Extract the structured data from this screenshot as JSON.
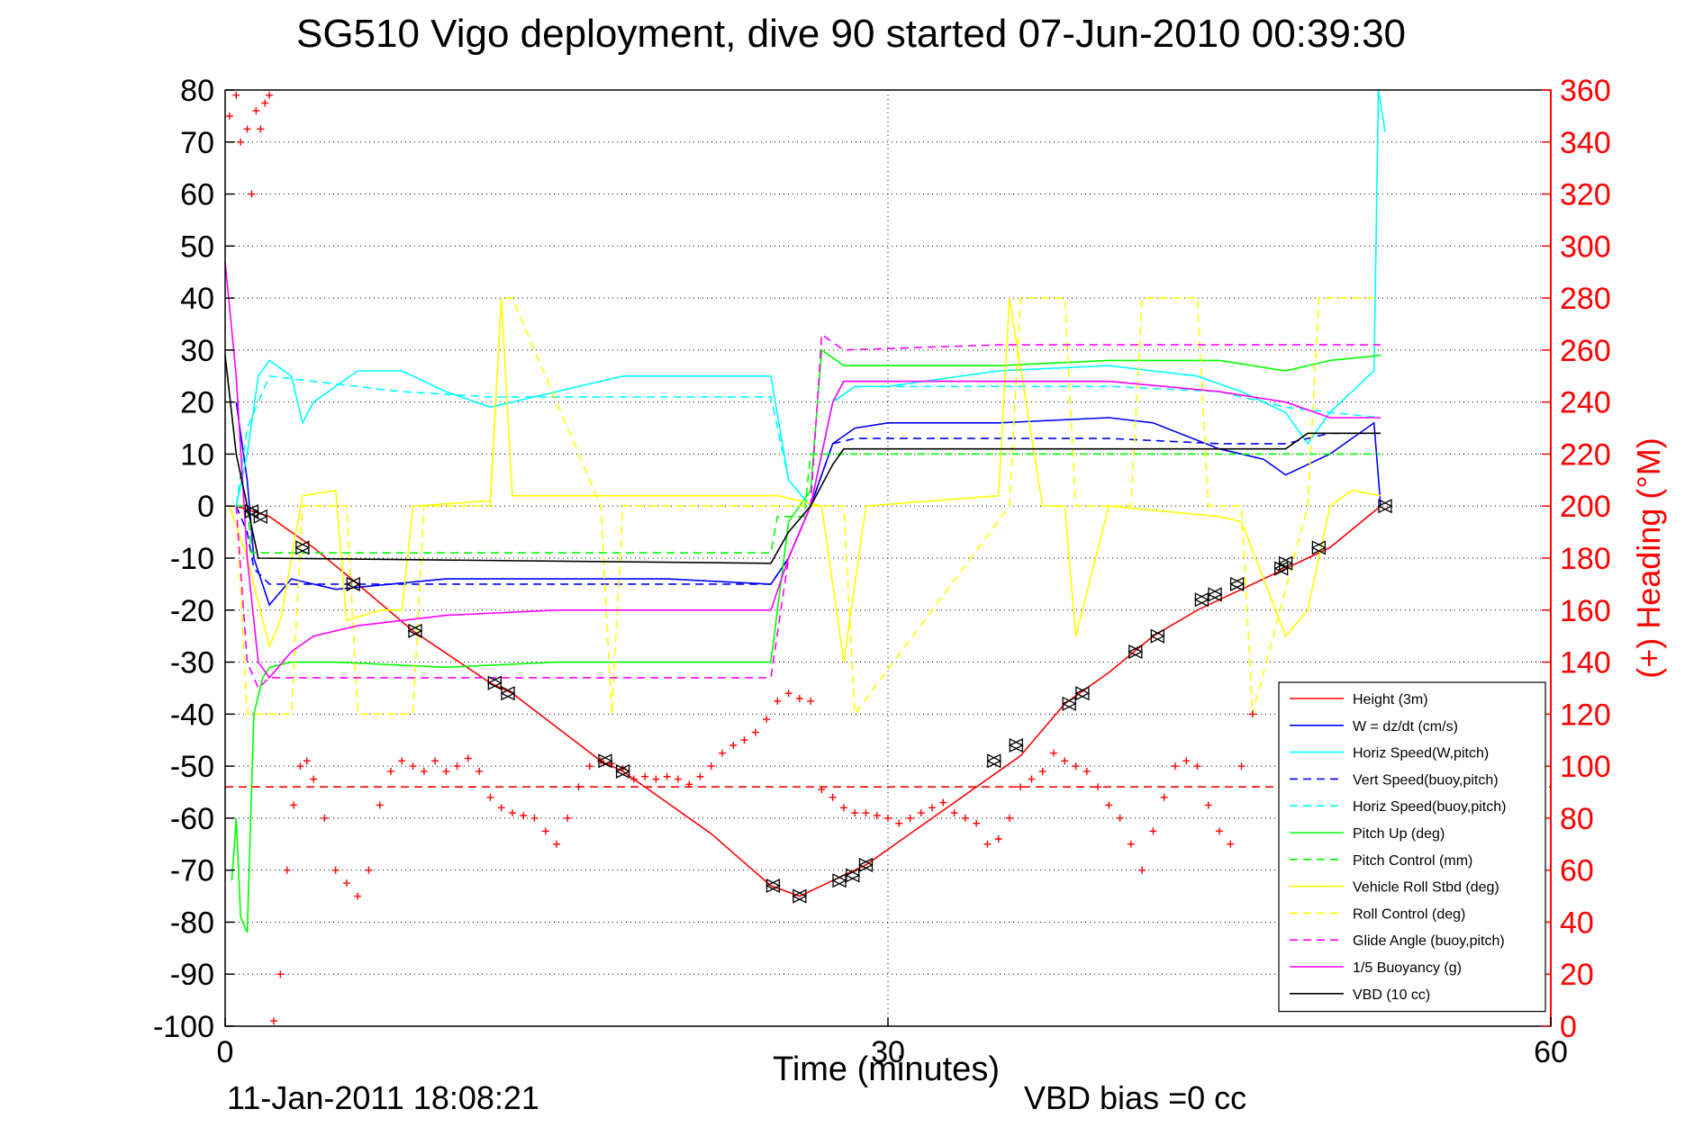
{
  "chart_data": {
    "type": "line",
    "title": "SG510 Vigo deployment, dive 90 started 07-Jun-2010 00:39:30",
    "xlabel": "Time (minutes)",
    "ylabel": "",
    "y2label": "(+) Heading (°M)",
    "footer_left": "11-Jan-2011 18:08:21",
    "footer_right": "VBD bias =0 cc",
    "xlim": [
      0,
      60
    ],
    "ylim": [
      -100,
      80
    ],
    "y2lim": [
      0,
      360
    ],
    "x_ticks": [
      "0",
      "30",
      "60"
    ],
    "x_tick_values": [
      0,
      30,
      60
    ],
    "y_ticks": [
      "80",
      "70",
      "60",
      "50",
      "40",
      "30",
      "20",
      "10",
      "0",
      "-10",
      "-20",
      "-30",
      "-40",
      "-50",
      "-60",
      "-70",
      "-80",
      "-90",
      "-100"
    ],
    "y_tick_values": [
      80,
      70,
      60,
      50,
      40,
      30,
      20,
      10,
      0,
      -10,
      -20,
      -30,
      -40,
      -50,
      -60,
      -70,
      -80,
      -90,
      -100
    ],
    "y2_ticks": [
      "360",
      "340",
      "320",
      "300",
      "280",
      "260",
      "240",
      "220",
      "200",
      "180",
      "160",
      "140",
      "120",
      "100",
      "80",
      "60",
      "40",
      "20",
      "0"
    ],
    "y2_tick_values": [
      360,
      340,
      320,
      300,
      280,
      260,
      240,
      220,
      200,
      180,
      160,
      140,
      120,
      100,
      80,
      60,
      40,
      20,
      0
    ],
    "grid": "dotted",
    "legend_position": "bottom-right",
    "colors": {
      "primary_axis": "#000000",
      "secondary_axis": "#ff0000"
    },
    "series": [
      {
        "name": "Height (3m)",
        "color": "#ff0000",
        "dash": "solid",
        "x": [
          0.5,
          2,
          4,
          6,
          8.5,
          12,
          13,
          17,
          18,
          20,
          22,
          24.7,
          26,
          27.5,
          28,
          29,
          33,
          36,
          38,
          40,
          42,
          44,
          46,
          47,
          48,
          50,
          52.3
        ],
        "y": [
          0,
          -2,
          -8,
          -15,
          -24,
          -34,
          -36,
          -49,
          -51,
          -57,
          -63,
          -73,
          -75,
          -72,
          -71,
          -69,
          -57,
          -48,
          -38,
          -32,
          -25,
          -20,
          -16,
          -14,
          -12,
          -8,
          0
        ]
      },
      {
        "name": "W = dz/dt (cm/s)",
        "color": "#0000ff",
        "dash": "solid",
        "x": [
          0.5,
          1,
          1.3,
          2,
          3,
          5,
          10,
          15,
          20,
          24.7,
          25.5,
          26.5,
          27.5,
          28.5,
          30,
          35,
          40,
          42,
          45,
          47,
          48,
          50,
          52,
          52.3
        ],
        "y": [
          20,
          5,
          -10,
          -19,
          -14,
          -16,
          -14,
          -14,
          -14,
          -15,
          -10,
          0,
          12,
          15,
          16,
          16,
          17,
          16,
          11,
          9,
          6,
          10,
          16,
          0
        ]
      },
      {
        "name": "Horiz Speed(W,pitch)",
        "color": "#00ffff",
        "dash": "solid",
        "x": [
          0.5,
          1,
          1.5,
          2,
          3,
          3.5,
          4,
          6,
          8,
          10,
          12,
          15,
          18,
          20,
          22,
          24.7,
          25.5,
          26.5,
          27.5,
          28.5,
          30,
          35,
          40,
          44,
          46,
          48,
          49,
          50,
          51,
          52,
          52.2,
          52.5
        ],
        "y": [
          0,
          10,
          25,
          28,
          25,
          16,
          20,
          26,
          26,
          22,
          19,
          22,
          25,
          25,
          25,
          25,
          5,
          0,
          20,
          23,
          23,
          26,
          27,
          25,
          22,
          18,
          12,
          18,
          22,
          26,
          80,
          72
        ]
      },
      {
        "name": "Vert Speed(buoy,pitch)",
        "color": "#0000ff",
        "dash": "dashed",
        "x": [
          0.5,
          1,
          1.3,
          2,
          3,
          5,
          24.7,
          25.5,
          26.5,
          27.5,
          28.5,
          35,
          40,
          45,
          48,
          50,
          52.3
        ],
        "y": [
          0,
          -5,
          -12,
          -15,
          -15,
          -15,
          -15,
          -10,
          0,
          12,
          13,
          13,
          13,
          12,
          12,
          14,
          14
        ]
      },
      {
        "name": "Horiz Speed(buoy,pitch)",
        "color": "#00ffff",
        "dash": "dashed",
        "x": [
          0.5,
          1,
          2,
          4,
          8,
          12,
          24.7,
          25.5,
          26.5,
          27.5,
          28.5,
          35,
          40,
          45,
          48,
          50,
          52.3
        ],
        "y": [
          0,
          15,
          25,
          24,
          22,
          21,
          21,
          5,
          0,
          20,
          23,
          23,
          23,
          22,
          19,
          18,
          17
        ]
      },
      {
        "name": "Pitch Up (deg)",
        "color": "#00ff00",
        "dash": "solid",
        "x": [
          0.3,
          0.5,
          0.7,
          1,
          1.3,
          1.7,
          2,
          3,
          5,
          10,
          15,
          20,
          24.7,
          25.5,
          26,
          26.5,
          27,
          28,
          35,
          40,
          45,
          48,
          50,
          52.3
        ],
        "y": [
          -72,
          -60,
          -79,
          -82,
          -40,
          -33,
          -31,
          -30,
          -30,
          -31,
          -30,
          -30,
          -30,
          -3,
          0,
          3,
          30,
          27,
          27,
          28,
          28,
          26,
          28,
          29
        ]
      },
      {
        "name": "Pitch Control (mm)",
        "color": "#00ff00",
        "dash": "dashed",
        "x": [
          0.5,
          1,
          1.2,
          2,
          24.7,
          25,
          26.2,
          26.5,
          28,
          52.3
        ],
        "y": [
          0,
          0,
          -9,
          -9,
          -9,
          -2,
          -2,
          10,
          10,
          10
        ]
      },
      {
        "name": "Vehicle Roll Stbd (deg)",
        "color": "#ffff00",
        "dash": "solid",
        "x": [
          0.2,
          1,
          2,
          2.5,
          3.5,
          5,
          5.5,
          7,
          8,
          8.5,
          12,
          12.5,
          13,
          20,
          24.7,
          25,
          27,
          28,
          29,
          35,
          35.5,
          37,
          38,
          38.5,
          40,
          45,
          46,
          48,
          49,
          50,
          51,
          52.3
        ],
        "y": [
          0,
          -10,
          -27,
          -22,
          2,
          3,
          -22,
          -20,
          -20,
          0,
          1,
          40,
          2,
          2,
          2,
          2,
          0,
          -30,
          0,
          2,
          40,
          0,
          0,
          -25,
          0,
          -2,
          -3,
          -25,
          -20,
          0,
          3,
          2
        ]
      },
      {
        "name": "Roll Control (deg)",
        "color": "#ffff00",
        "dash": "dashed",
        "x": [
          0.5,
          1,
          1.5,
          3,
          3.5,
          5.5,
          6,
          8.5,
          9,
          12,
          12.5,
          13,
          17,
          17.5,
          18,
          28,
          28.5,
          35.5,
          36,
          38,
          38.5,
          41,
          41.5,
          44,
          44.5,
          46,
          46.5,
          49,
          49.5,
          52.3
        ],
        "y": [
          0,
          -40,
          -40,
          -40,
          0,
          0,
          -40,
          -40,
          0,
          0,
          40,
          40,
          0,
          -40,
          0,
          0,
          -40,
          0,
          40,
          40,
          0,
          0,
          40,
          40,
          0,
          0,
          -40,
          0,
          40,
          40
        ]
      },
      {
        "name": "Glide Angle (buoy,pitch)",
        "color": "#ff00ff",
        "dash": "dashed",
        "x": [
          0.5,
          1,
          1.5,
          2,
          3,
          5,
          10,
          15,
          24.7,
          25.5,
          26.5,
          27,
          28,
          35,
          40,
          45,
          48,
          50,
          52.3
        ],
        "y": [
          0,
          -30,
          -35,
          -33,
          -33,
          -33,
          -33,
          -33,
          -33,
          -10,
          0,
          33,
          30,
          31,
          31,
          31,
          31,
          31,
          31
        ]
      },
      {
        "name": "1/5 Buoyancy (g)",
        "color": "#ff00ff",
        "dash": "solid",
        "x": [
          0,
          0.5,
          1,
          1.5,
          2,
          3,
          4,
          6,
          8,
          10,
          15,
          24.7,
          25.5,
          26.5,
          27.5,
          28,
          35,
          40,
          45,
          48,
          50,
          52.3
        ],
        "y": [
          47,
          25,
          -10,
          -30,
          -33,
          -28,
          -25,
          -23,
          -22,
          -21,
          -20,
          -20,
          -10,
          0,
          20,
          24,
          24,
          24,
          22,
          20,
          17,
          17
        ]
      },
      {
        "name": "VBD (10 cc)",
        "color": "#000000",
        "dash": "solid",
        "x": [
          0,
          0.5,
          1,
          1.5,
          24.7,
          25.5,
          26.5,
          27.5,
          28,
          46,
          47,
          48,
          49,
          52.3
        ],
        "y": [
          29,
          10,
          0,
          -10,
          -11,
          -5,
          0,
          8,
          11,
          11,
          11,
          11,
          14,
          14
        ]
      }
    ],
    "heading": {
      "axis": "right",
      "marker": "+",
      "color": "#ff0000",
      "mean": 92,
      "x": [
        0.2,
        0.5,
        0.7,
        1.0,
        1.2,
        1.4,
        1.6,
        1.8,
        2.0,
        2.2,
        2.5,
        2.8,
        3.1,
        3.4,
        3.7,
        4.0,
        4.5,
        5.0,
        5.5,
        6.0,
        6.5,
        7.0,
        7.5,
        8.0,
        8.5,
        9.0,
        9.5,
        10.0,
        10.5,
        11.0,
        11.5,
        12.0,
        12.5,
        13.0,
        13.5,
        14.0,
        14.5,
        15.0,
        15.5,
        16.0,
        16.5,
        17.0,
        17.5,
        18.0,
        18.5,
        19.0,
        19.5,
        20.0,
        20.5,
        21.0,
        21.5,
        22.0,
        22.5,
        23.0,
        23.5,
        24.0,
        24.5,
        25.0,
        25.5,
        26.0,
        26.5,
        27.0,
        27.5,
        28.0,
        28.5,
        29.0,
        29.5,
        30.0,
        30.5,
        31.0,
        31.5,
        32.0,
        32.5,
        33.0,
        33.5,
        34.0,
        34.5,
        35.0,
        35.5,
        36.0,
        36.5,
        37.0,
        37.5,
        38.0,
        38.5,
        39.0,
        39.5,
        40.0,
        40.5,
        41.0,
        41.5,
        42.0,
        42.5,
        43.0,
        43.5,
        44.0,
        44.5,
        45.0,
        45.5,
        46.0,
        46.5
      ],
      "y": [
        350,
        358,
        340,
        345,
        320,
        352,
        345,
        355,
        358,
        2,
        20,
        60,
        85,
        100,
        102,
        95,
        80,
        60,
        55,
        50,
        60,
        85,
        98,
        102,
        100,
        98,
        102,
        98,
        100,
        103,
        98,
        88,
        84,
        82,
        81,
        80,
        75,
        70,
        80,
        92,
        100,
        102,
        101,
        99,
        95,
        96,
        95,
        96,
        95,
        93,
        96,
        100,
        105,
        108,
        110,
        113,
        118,
        125,
        128,
        126,
        125,
        91,
        88,
        84,
        82,
        82,
        81,
        80,
        78,
        80,
        82,
        84,
        86,
        82,
        80,
        78,
        70,
        72,
        80,
        92,
        95,
        98,
        105,
        102,
        100,
        98,
        92,
        85,
        80,
        70,
        60,
        75,
        88,
        100,
        102,
        100,
        85,
        75,
        70,
        100,
        120
      ]
    },
    "dive_markers": {
      "symbol": "triangle",
      "x": [
        1.2,
        1.6,
        3.5,
        5.8,
        8.6,
        12.2,
        12.8,
        17.2,
        18.0,
        24.8,
        26.0,
        27.8,
        28.4,
        29.0,
        34.8,
        35.8,
        38.2,
        38.8,
        41.2,
        42.2,
        44.2,
        44.8,
        45.8,
        47.8,
        48.0,
        49.5,
        52.5
      ],
      "y": [
        -1,
        -2,
        -8,
        -15,
        -24,
        -34,
        -36,
        -49,
        -51,
        -73,
        -75,
        -72,
        -71,
        -69,
        -49,
        -46,
        -38,
        -36,
        -28,
        -25,
        -18,
        -17,
        -15,
        -12,
        -11,
        -8,
        0
      ]
    }
  }
}
